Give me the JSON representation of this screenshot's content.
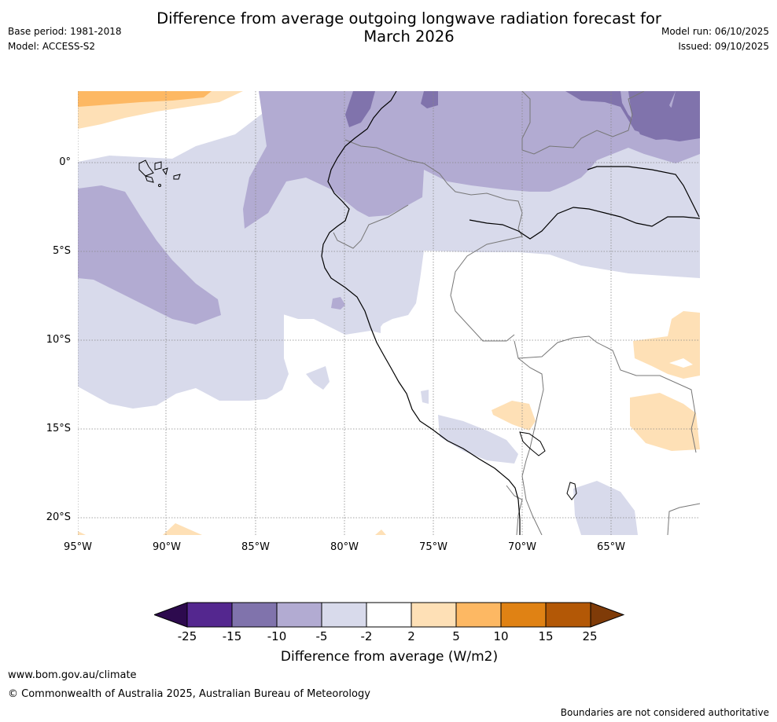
{
  "header": {
    "title_line1": "Difference from average outgoing longwave radiation forecast for",
    "title_line2": "March 2026",
    "base_period": "Base period: 1981-2018",
    "model": "Model: ACCESS-S2",
    "model_run": "Model run: 06/10/2025",
    "issued": "Issued: 09/10/2025"
  },
  "map": {
    "lat_labels": [
      "0°",
      "5°S",
      "10°S",
      "15°S",
      "20°S"
    ],
    "lon_labels": [
      "95°W",
      "90°W",
      "85°W",
      "80°W",
      "75°W",
      "70°W",
      "65°W"
    ]
  },
  "colorbar": {
    "title": "Difference from average (W/m2)",
    "ticks": [
      "-25",
      "-15",
      "-10",
      "-5",
      "-2",
      "2",
      "5",
      "10",
      "15",
      "25"
    ],
    "colors": {
      "neg_extreme": "#2d0a4e",
      "neg_25_15": "#54278f",
      "neg_15_10": "#8073ac",
      "neg_10_5": "#b2abd2",
      "neg_5_2": "#d8daeb",
      "neutral": "#ffffff",
      "pos_2_5": "#fee0b6",
      "pos_5_10": "#fdb863",
      "pos_10_15": "#e08214",
      "pos_15_25": "#b35806",
      "pos_extreme": "#7f3b08"
    }
  },
  "footer": {
    "website": "www.bom.gov.au/climate",
    "copyright": "© Commonwealth of Australia 2025, Australian Bureau of Meteorology",
    "disclaimer": "Boundaries are not considered authoritative"
  }
}
